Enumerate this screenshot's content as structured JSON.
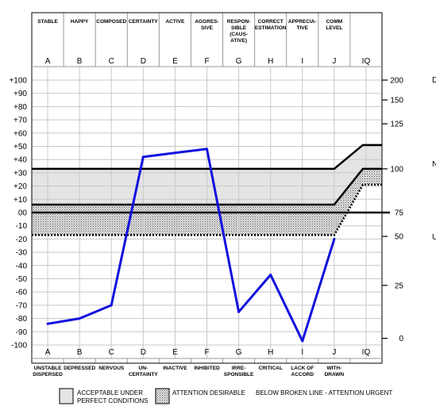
{
  "chart_data": {
    "type": "line",
    "top_traits": [
      [
        "STABLE"
      ],
      [
        "HAPPY"
      ],
      [
        "COMPOSED"
      ],
      [
        "CERTAINTY"
      ],
      [
        "ACTIVE"
      ],
      [
        "AGGRES-",
        "SIVE"
      ],
      [
        "RESPON-",
        "SIBLE",
        "(CAUS-",
        "ATIVE)"
      ],
      [
        "CORRECT",
        "ESTIMATION"
      ],
      [
        "APPRECIA-",
        "TIVE"
      ],
      [
        "COMM",
        "LEVEL"
      ],
      [
        ""
      ]
    ],
    "bottom_traits": [
      [
        "UNSTABLE",
        "DISPERSED"
      ],
      [
        "DEPRESSED"
      ],
      [
        "NERVOUS"
      ],
      [
        "UN-",
        "CERTAINTY"
      ],
      [
        "INACTIVE"
      ],
      [
        "INHIBITED"
      ],
      [
        "IRRE-",
        "SPONSIBLE"
      ],
      [
        "CRITICAL"
      ],
      [
        "LACK OF",
        "ACCORD"
      ],
      [
        "WITH-",
        "DRAWN"
      ],
      [
        ""
      ]
    ],
    "columns": [
      "A",
      "B",
      "C",
      "D",
      "E",
      "F",
      "G",
      "H",
      "I",
      "J",
      "IQ"
    ],
    "y_left_ticks": [
      "+100",
      "+90",
      "+80",
      "+70",
      "+60",
      "+50",
      "+40",
      "+30",
      "+20",
      "+10",
      "00",
      "-10",
      "-20",
      "-30",
      "-40",
      "-50",
      "-60",
      "-70",
      "-80",
      "-90",
      "-100"
    ],
    "ylim": [
      -100,
      100
    ],
    "iq_scale": {
      "ticks": [
        {
          "label": "200",
          "value": 100
        },
        {
          "label": "150",
          "value": 85
        },
        {
          "label": "125",
          "value": 67
        },
        {
          "label": "100",
          "value": 33
        },
        {
          "label": "75",
          "value": 0
        },
        {
          "label": "50",
          "value": -18
        },
        {
          "label": "25",
          "value": -55
        },
        {
          "label": "0",
          "value": -95
        }
      ]
    },
    "series": [
      {
        "color": "#1111dd",
        "values": [
          -84,
          -80,
          -70,
          42,
          45,
          48,
          -75,
          -47,
          -97,
          -20
        ]
      }
    ],
    "bands": {
      "acceptable": {
        "top": 33,
        "bottom": 6,
        "top_iq": 51,
        "bottom_iq": 33,
        "color": "#e4e4e4"
      },
      "attention": {
        "top": 6,
        "bottom": -17,
        "top_iq": 33,
        "bottom_iq": 21,
        "color": "#b8b8b8"
      }
    },
    "reference_lines": {
      "upper": 33,
      "upper_iq": 51,
      "zero": 0,
      "broken": -17,
      "broken_iq": 21
    },
    "grid": true,
    "right_edge_letters": [
      "D",
      "N",
      "U"
    ]
  },
  "legend": {
    "acceptable_line1": "ACCEPTABLE UNDER",
    "acceptable_line2": "PERFECT CONDITIONS",
    "attention": "ATTENTION DESIRABLE",
    "urgent": "BELOW BROKEN LINE - ATTENTION URGENT"
  }
}
